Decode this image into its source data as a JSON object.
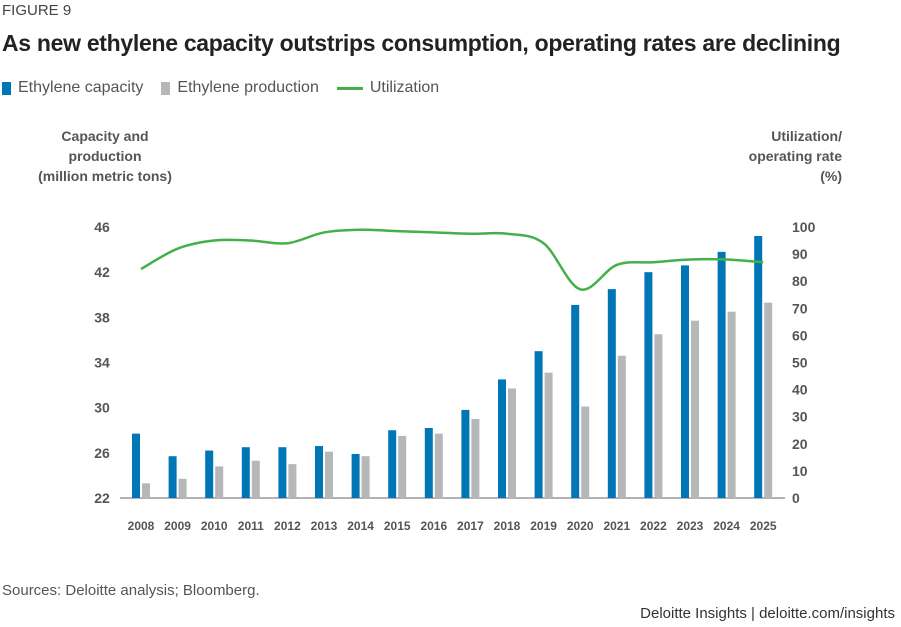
{
  "figure_label": "FIGURE 9",
  "footer": {
    "sources": "Sources: Deloitte analysis; Bloomberg.",
    "brand": "Deloitte Insights | deloitte.com/insights"
  },
  "chart_data": {
    "type": "bar",
    "title": "As new ethylene capacity outstrips consumption, operating rates are declining",
    "ylabel": "Capacity and production (million metric tons)",
    "ylabel_lines": [
      "Capacity and",
      "production",
      "(million metric tons)"
    ],
    "y2label": "Utilization/ operating rate (%)",
    "y2label_lines": [
      "Utilization/",
      "operating rate",
      "(%)"
    ],
    "ylim": [
      22,
      46
    ],
    "y2lim": [
      0,
      100
    ],
    "yticks": [
      22,
      26,
      30,
      34,
      38,
      42,
      46
    ],
    "y2ticks": [
      0,
      10,
      20,
      30,
      40,
      50,
      60,
      70,
      80,
      90,
      100
    ],
    "legend_position": "top-left",
    "grid": false,
    "categories": [
      "2008",
      "2009",
      "2010",
      "2011",
      "2012",
      "2013",
      "2014",
      "2015",
      "2016",
      "2017",
      "2018",
      "2019",
      "2020",
      "2021",
      "2022",
      "2023",
      "2024",
      "2025"
    ],
    "series": [
      {
        "name": "Ethylene capacity",
        "type": "bar",
        "axis": "left",
        "color": "#0076b6",
        "values": [
          27.7,
          25.7,
          26.2,
          26.5,
          26.5,
          26.6,
          25.9,
          28.0,
          28.2,
          29.8,
          32.5,
          35.0,
          39.1,
          40.5,
          42.0,
          42.6,
          43.8,
          45.2
        ]
      },
      {
        "name": "Ethylene production",
        "type": "bar",
        "axis": "left",
        "color": "#b5b7b8",
        "values": [
          23.3,
          23.7,
          24.8,
          25.3,
          25.0,
          26.1,
          25.7,
          27.5,
          27.7,
          29.0,
          31.7,
          33.1,
          30.1,
          34.6,
          36.5,
          37.7,
          38.5,
          39.3
        ]
      },
      {
        "name": "Utilization",
        "type": "line",
        "axis": "right",
        "color": "#43b049",
        "values": [
          84.5,
          92,
          95,
          95,
          94,
          98,
          99,
          98.5,
          98,
          97.5,
          97.5,
          94,
          77,
          86,
          87,
          88,
          88,
          87
        ]
      }
    ]
  }
}
